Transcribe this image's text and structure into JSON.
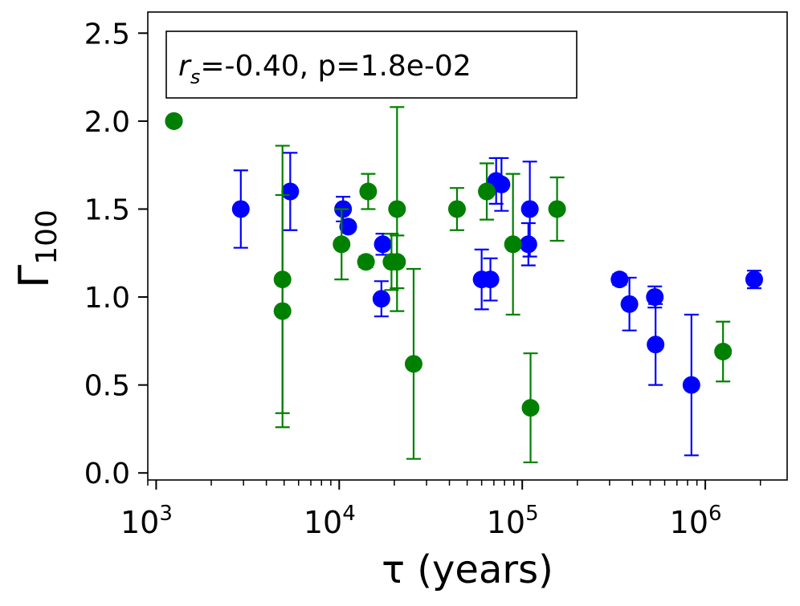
{
  "chart_data": {
    "type": "scatter",
    "x_scale": "log",
    "xlim": [
      900,
      2800000
    ],
    "ylim": [
      -0.04,
      2.62
    ],
    "xlabel": "τ (years)",
    "ylabel": "Γ",
    "ylabel_sub": "100",
    "annotation": {
      "symbol": "r",
      "symbol_sub": "s",
      "text": "=-0.40, p=1.8e-02",
      "position": "top-left"
    },
    "x_ticks": [
      {
        "value": 1000,
        "base": "10",
        "exp": "3"
      },
      {
        "value": 10000,
        "base": "10",
        "exp": "4"
      },
      {
        "value": 100000,
        "base": "10",
        "exp": "5"
      },
      {
        "value": 1000000,
        "base": "10",
        "exp": "6"
      }
    ],
    "y_ticks": [
      {
        "value": 0.0,
        "label": "0.0"
      },
      {
        "value": 0.5,
        "label": "0.5"
      },
      {
        "value": 1.0,
        "label": "1.0"
      },
      {
        "value": 1.5,
        "label": "1.5"
      },
      {
        "value": 2.0,
        "label": "2.0"
      },
      {
        "value": 2.5,
        "label": "2.5"
      }
    ],
    "series": [
      {
        "name": "blue",
        "color": "#0000ff",
        "points": [
          {
            "x": 1250,
            "y": 2.0,
            "lo": 1.99,
            "hi": 2.01
          },
          {
            "x": 2900,
            "y": 1.5,
            "lo": 1.28,
            "hi": 1.72
          },
          {
            "x": 5400,
            "y": 1.6,
            "lo": 1.38,
            "hi": 1.82
          },
          {
            "x": 10500,
            "y": 1.5,
            "lo": 1.43,
            "hi": 1.57
          },
          {
            "x": 11200,
            "y": 1.4,
            "lo": 1.38,
            "hi": 1.42
          },
          {
            "x": 17300,
            "y": 1.3,
            "lo": 1.24,
            "hi": 1.36
          },
          {
            "x": 17000,
            "y": 0.99,
            "lo": 0.89,
            "hi": 1.09
          },
          {
            "x": 60000,
            "y": 1.1,
            "lo": 0.93,
            "hi": 1.27
          },
          {
            "x": 67000,
            "y": 1.1,
            "lo": 0.98,
            "hi": 1.22
          },
          {
            "x": 72000,
            "y": 1.66,
            "lo": 1.53,
            "hi": 1.79
          },
          {
            "x": 77000,
            "y": 1.64,
            "lo": 1.49,
            "hi": 1.79
          },
          {
            "x": 110000,
            "y": 1.5,
            "lo": 1.23,
            "hi": 1.77
          },
          {
            "x": 108000,
            "y": 1.3,
            "lo": 1.18,
            "hi": 1.42
          },
          {
            "x": 340000,
            "y": 1.1,
            "lo": 1.07,
            "hi": 1.13
          },
          {
            "x": 385000,
            "y": 0.96,
            "lo": 0.81,
            "hi": 1.11
          },
          {
            "x": 530000,
            "y": 1.0,
            "lo": 0.94,
            "hi": 1.06
          },
          {
            "x": 535000,
            "y": 0.73,
            "lo": 0.5,
            "hi": 0.96
          },
          {
            "x": 840000,
            "y": 0.5,
            "lo": 0.1,
            "hi": 0.9
          },
          {
            "x": 1850000,
            "y": 1.1,
            "lo": 1.05,
            "hi": 1.15
          }
        ]
      },
      {
        "name": "green",
        "color": "#008000",
        "points": [
          {
            "x": 1250,
            "y": 2.0,
            "lo": 1.99,
            "hi": 2.01
          },
          {
            "x": 4900,
            "y": 1.1,
            "lo": 0.34,
            "hi": 1.86
          },
          {
            "x": 4900,
            "y": 0.92,
            "lo": 0.26,
            "hi": 1.58
          },
          {
            "x": 10300,
            "y": 1.3,
            "lo": 1.1,
            "hi": 1.5
          },
          {
            "x": 14000,
            "y": 1.2,
            "lo": 1.17,
            "hi": 1.23
          },
          {
            "x": 14400,
            "y": 1.6,
            "lo": 1.5,
            "hi": 1.7
          },
          {
            "x": 19300,
            "y": 1.2,
            "lo": 1.04,
            "hi": 1.36
          },
          {
            "x": 20700,
            "y": 1.2,
            "lo": 1.05,
            "hi": 1.35
          },
          {
            "x": 20700,
            "y": 1.5,
            "lo": 0.92,
            "hi": 2.08
          },
          {
            "x": 25500,
            "y": 0.62,
            "lo": 0.08,
            "hi": 1.16
          },
          {
            "x": 44000,
            "y": 1.5,
            "lo": 1.38,
            "hi": 1.62
          },
          {
            "x": 64000,
            "y": 1.6,
            "lo": 1.44,
            "hi": 1.76
          },
          {
            "x": 89000,
            "y": 1.3,
            "lo": 0.9,
            "hi": 1.7
          },
          {
            "x": 111000,
            "y": 0.37,
            "lo": 0.06,
            "hi": 0.68
          },
          {
            "x": 155000,
            "y": 1.5,
            "lo": 1.32,
            "hi": 1.68
          },
          {
            "x": 1250000,
            "y": 0.69,
            "lo": 0.52,
            "hi": 0.86
          }
        ]
      }
    ]
  }
}
